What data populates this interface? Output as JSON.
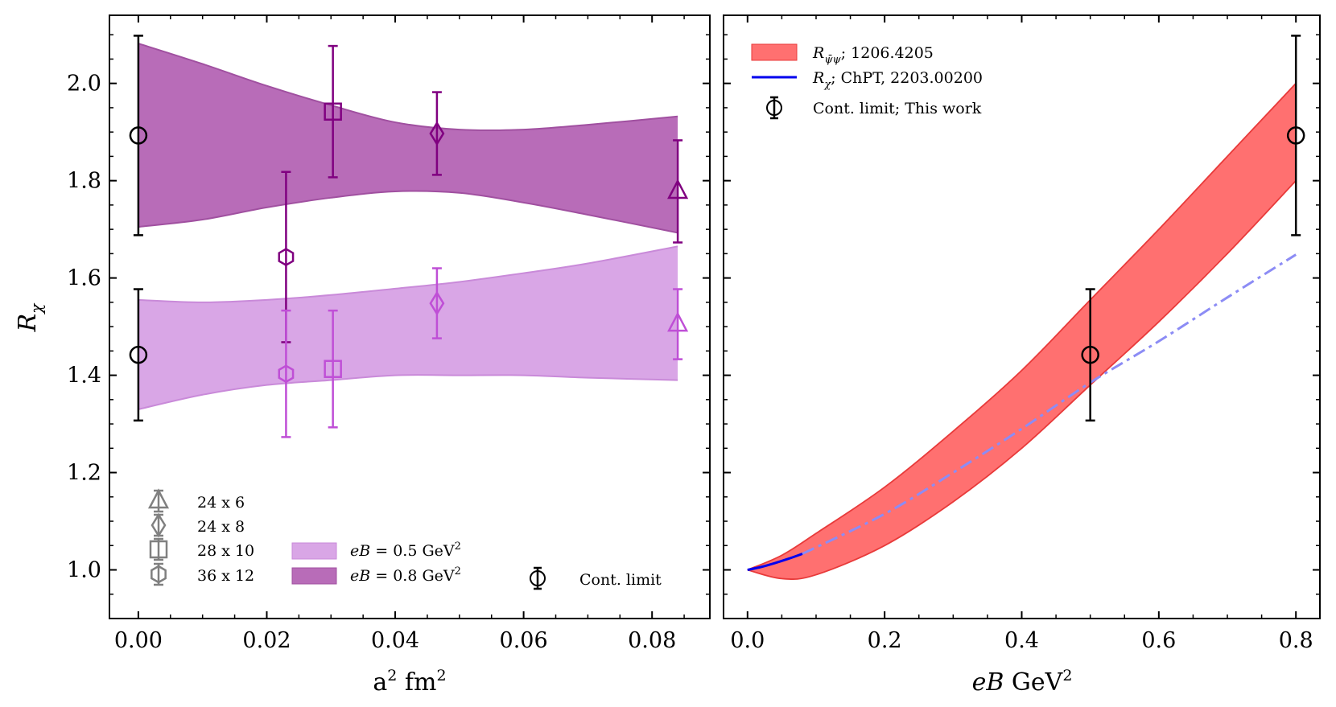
{
  "colors": {
    "dark_purple": "#800080",
    "light_purple": "#bf4fd6",
    "band_dark": "#b86cb8",
    "band_light": "#d9a6e6",
    "red_band": "#ff7070",
    "red_edge": "#e83a3a",
    "blue": "#0000ee",
    "blue_dashed": "#8c8cf5",
    "gray_marker": "#808080",
    "black": "#000000"
  },
  "chart_data": [
    {
      "type": "scatter",
      "panel": "left",
      "xlabel_main": "a",
      "xlabel_sup": "2",
      "xlabel_rest": " fm",
      "xlabel_sup2": "2",
      "ylabel_main": "R",
      "ylabel_sub": "χ",
      "xlim": [
        -0.0045,
        0.089
      ],
      "ylim": [
        0.9,
        2.14
      ],
      "xticks": [
        0.0,
        0.02,
        0.04,
        0.06,
        0.08
      ],
      "xtick_labels": [
        "0.00",
        "0.02",
        "0.04",
        "0.06",
        "0.08"
      ],
      "yticks": [
        1.0,
        1.2,
        1.4,
        1.6,
        1.8,
        2.0
      ],
      "ytick_labels": [
        "1.0",
        "1.2",
        "1.4",
        "1.6",
        "1.8",
        "2.0"
      ],
      "bands": [
        {
          "name": "eB = 0.5 GeV²",
          "x": [
            0.0,
            0.01,
            0.02,
            0.03,
            0.04,
            0.05,
            0.06,
            0.07,
            0.084
          ],
          "lower": [
            1.33,
            1.36,
            1.38,
            1.39,
            1.4,
            1.4,
            1.4,
            1.395,
            1.39
          ],
          "upper": [
            1.555,
            1.55,
            1.555,
            1.565,
            1.578,
            1.592,
            1.61,
            1.63,
            1.665
          ]
        },
        {
          "name": "eB = 0.8 GeV²",
          "x": [
            0.0,
            0.01,
            0.02,
            0.03,
            0.04,
            0.05,
            0.06,
            0.07,
            0.084
          ],
          "lower": [
            1.705,
            1.72,
            1.745,
            1.765,
            1.778,
            1.775,
            1.755,
            1.73,
            1.693
          ],
          "upper": [
            2.082,
            2.04,
            1.995,
            1.955,
            1.92,
            1.905,
            1.905,
            1.915,
            1.932
          ]
        }
      ],
      "series": [
        {
          "name": "36 x 12",
          "group": "eB = 0.8 GeV²",
          "marker": "hexagon",
          "x": 0.023,
          "y": 1.643,
          "err": 0.175
        },
        {
          "name": "28 x 10",
          "group": "eB = 0.8 GeV²",
          "marker": "square",
          "x": 0.0303,
          "y": 1.942,
          "err": 0.135
        },
        {
          "name": "24 x 8",
          "group": "eB = 0.8 GeV²",
          "marker": "diamond",
          "x": 0.0465,
          "y": 1.897,
          "err": 0.085
        },
        {
          "name": "24 x 6",
          "group": "eB = 0.8 GeV²",
          "marker": "triangle",
          "x": 0.084,
          "y": 1.778,
          "err": 0.105
        },
        {
          "name": "36 x 12",
          "group": "eB = 0.5 GeV²",
          "marker": "hexagon",
          "x": 0.023,
          "y": 1.403,
          "err": 0.13
        },
        {
          "name": "28 x 10",
          "group": "eB = 0.5 GeV²",
          "marker": "square",
          "x": 0.0303,
          "y": 1.413,
          "err": 0.12
        },
        {
          "name": "24 x 8",
          "group": "eB = 0.5 GeV²",
          "marker": "diamond",
          "x": 0.0465,
          "y": 1.548,
          "err": 0.072
        },
        {
          "name": "24 x 6",
          "group": "eB = 0.5 GeV²",
          "marker": "triangle",
          "x": 0.084,
          "y": 1.505,
          "err": 0.072
        },
        {
          "name": "Cont. limit",
          "group": "eB = 0.8 GeV²",
          "marker": "circle",
          "x": 0.0,
          "y": 1.893,
          "err": 0.205
        },
        {
          "name": "Cont. limit",
          "group": "eB = 0.5 GeV²",
          "marker": "circle",
          "x": 0.0,
          "y": 1.442,
          "err": 0.135
        }
      ],
      "legend": {
        "markers": [
          "24 x 6",
          "24 x 8",
          "28 x 10",
          "36 x 12"
        ],
        "band_labels_prefix": "eB",
        "band_labels_mid": " = 0.5 GeV",
        "band_labels_mid2": " = 0.8 GeV",
        "sup": "2",
        "cont": "Cont. limit",
        "placement": "bottom"
      }
    },
    {
      "type": "line",
      "panel": "right",
      "xlabel_main": "eB",
      "xlabel_rest": " GeV",
      "xlabel_sup": "2",
      "xlim": [
        -0.035,
        0.835
      ],
      "ylim": [
        0.9,
        2.14
      ],
      "xticks": [
        0.0,
        0.2,
        0.4,
        0.6,
        0.8
      ],
      "xtick_labels": [
        "0.0",
        "0.2",
        "0.4",
        "0.6",
        "0.8"
      ],
      "yticks": [
        1.0,
        1.2,
        1.4,
        1.6,
        1.8,
        2.0
      ],
      "band": {
        "name": "1206.4205",
        "x": [
          0.0,
          0.05,
          0.1,
          0.2,
          0.3,
          0.4,
          0.5,
          0.6,
          0.7,
          0.8
        ],
        "lower": [
          1.0,
          0.982,
          0.99,
          1.05,
          1.14,
          1.25,
          1.38,
          1.51,
          1.65,
          1.8
        ],
        "upper": [
          1.0,
          1.03,
          1.075,
          1.17,
          1.285,
          1.41,
          1.555,
          1.7,
          1.85,
          2.0
        ]
      },
      "chpt_solid": {
        "x": [
          0.0,
          0.02,
          0.04,
          0.06,
          0.08
        ],
        "y": [
          1.0,
          1.006,
          1.014,
          1.023,
          1.033
        ]
      },
      "chpt_dashdot": {
        "x": [
          0.08,
          0.2,
          0.3,
          0.4,
          0.5,
          0.6,
          0.7,
          0.8
        ],
        "y": [
          1.033,
          1.115,
          1.2,
          1.29,
          1.385,
          1.47,
          1.56,
          1.648
        ]
      },
      "points": [
        {
          "name": "Cont. limit; This work",
          "x": 0.5,
          "y": 1.442,
          "err": 0.135
        },
        {
          "name": "Cont. limit; This work",
          "x": 0.8,
          "y": 1.893,
          "err": 0.205
        }
      ],
      "legend": {
        "band_main": "R",
        "band_sub": "ψ̄ψ",
        "band_rest": "; 1206.4205",
        "line_main": "R",
        "line_sub": "χ",
        "line_rest": "; ChPT, 2203.00200",
        "point": "Cont. limit; This work",
        "placement": "top-left"
      }
    }
  ]
}
